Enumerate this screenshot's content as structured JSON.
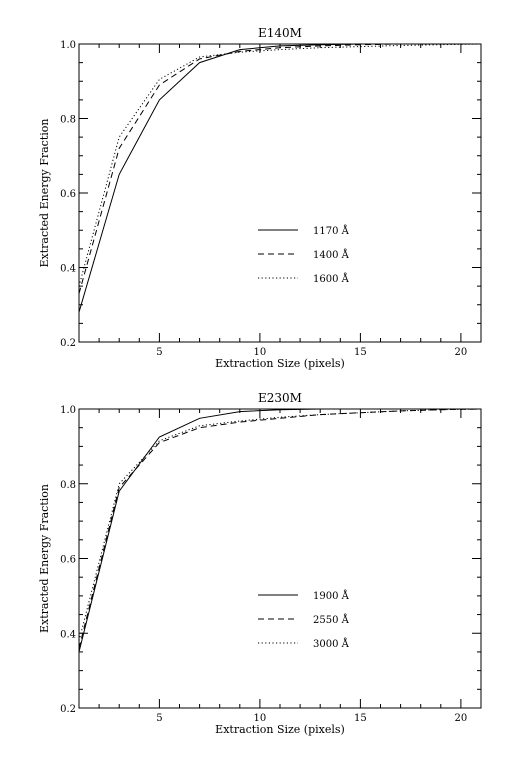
{
  "chart_data": [
    {
      "type": "line",
      "title": "E140M",
      "xlabel": "Extraction Size (pixels)",
      "ylabel": "Extracted Energy Fraction",
      "xlim": [
        1,
        21
      ],
      "ylim": [
        0.2,
        1.0
      ],
      "xticks": [
        5,
        10,
        15,
        20
      ],
      "yticks": [
        0.2,
        0.4,
        0.6,
        0.8,
        1.0
      ],
      "ytick_labels": [
        "0.2",
        "0.4",
        "0.6",
        "0.8",
        "1.0"
      ],
      "grid": false,
      "legend_position": "center-right",
      "series": [
        {
          "name": "1170 Å",
          "style": "solid",
          "x": [
            1,
            3,
            5,
            7,
            9,
            11,
            13,
            15,
            17,
            19,
            21
          ],
          "y": [
            0.28,
            0.65,
            0.85,
            0.95,
            0.985,
            0.995,
            0.998,
            1.0,
            1.0,
            1.0,
            1.0
          ]
        },
        {
          "name": "1400 Å",
          "style": "dashed",
          "x": [
            1,
            3,
            5,
            7,
            9,
            11,
            13,
            15,
            17,
            19,
            21
          ],
          "y": [
            0.33,
            0.72,
            0.89,
            0.96,
            0.98,
            0.99,
            0.995,
            0.998,
            1.0,
            1.0,
            1.0
          ]
        },
        {
          "name": "1600 Å",
          "style": "dotted",
          "x": [
            1,
            3,
            5,
            7,
            9,
            11,
            13,
            15,
            17,
            19,
            21
          ],
          "y": [
            0.35,
            0.75,
            0.905,
            0.965,
            0.978,
            0.985,
            0.99,
            0.993,
            0.996,
            0.998,
            1.0
          ]
        }
      ]
    },
    {
      "type": "line",
      "title": "E230M",
      "xlabel": "Extraction Size (pixels)",
      "ylabel": "Extracted Energy Fraction",
      "xlim": [
        1,
        21
      ],
      "ylim": [
        0.2,
        1.0
      ],
      "xticks": [
        5,
        10,
        15,
        20
      ],
      "yticks": [
        0.2,
        0.4,
        0.6,
        0.8,
        1.0
      ],
      "ytick_labels": [
        "0.2",
        "0.4",
        "0.6",
        "0.8",
        "1.0"
      ],
      "grid": false,
      "legend_position": "center-right",
      "series": [
        {
          "name": "1900 Å",
          "style": "solid",
          "x": [
            1,
            3,
            5,
            7,
            9,
            11,
            13,
            15,
            17,
            19,
            21
          ],
          "y": [
            0.35,
            0.78,
            0.925,
            0.975,
            0.993,
            0.998,
            1.0,
            1.0,
            1.0,
            1.0,
            1.0
          ]
        },
        {
          "name": "2550 Å",
          "style": "dashed",
          "x": [
            1,
            3,
            5,
            7,
            9,
            11,
            13,
            15,
            17,
            19,
            21
          ],
          "y": [
            0.36,
            0.79,
            0.91,
            0.95,
            0.965,
            0.975,
            0.985,
            0.99,
            0.995,
            0.998,
            1.0
          ]
        },
        {
          "name": "3000 Å",
          "style": "dotted",
          "x": [
            1,
            3,
            5,
            7,
            9,
            11,
            13,
            15,
            17,
            19,
            21
          ],
          "y": [
            0.38,
            0.8,
            0.915,
            0.955,
            0.968,
            0.978,
            0.985,
            0.99,
            0.995,
            0.998,
            1.0
          ]
        }
      ]
    }
  ]
}
